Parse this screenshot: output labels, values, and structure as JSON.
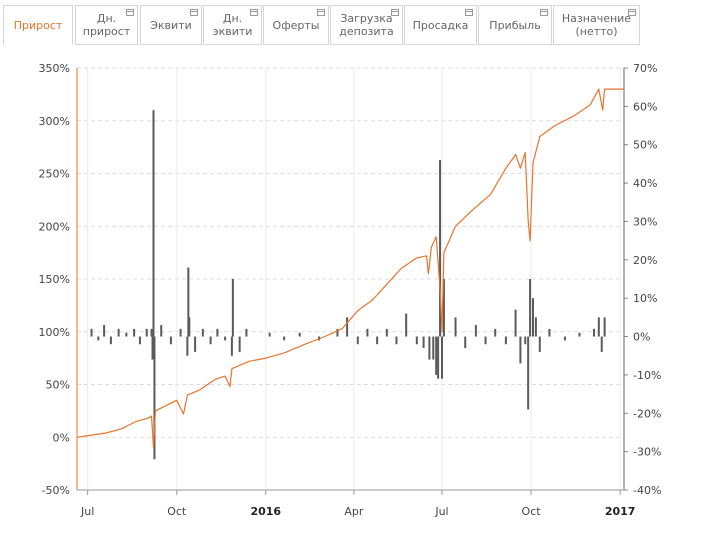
{
  "tabs": [
    {
      "label": "Прирост",
      "active": true
    },
    {
      "label": "Дн.\nприрост",
      "active": false
    },
    {
      "label": "Эквити",
      "active": false
    },
    {
      "label": "Дн.\nэквити",
      "active": false
    },
    {
      "label": "Оферты",
      "active": false
    },
    {
      "label": "Загрузка\nдепозита",
      "active": false
    },
    {
      "label": "Просадка",
      "active": false
    },
    {
      "label": "Прибыль",
      "active": false
    },
    {
      "label": "Назначение\n(нетто)",
      "active": false
    }
  ],
  "colors": {
    "accent": "#e8742c",
    "growth_line": "#e8742c",
    "daily_bars": "#5a5a5a",
    "grid": "#dcdcdc"
  },
  "chart_data": {
    "type": "line",
    "title": "",
    "x_ticks": [
      {
        "label": "Jul",
        "date": "2015-07-01",
        "bold": false
      },
      {
        "label": "Oct",
        "date": "2015-10-01",
        "bold": false
      },
      {
        "label": "2016",
        "date": "2016-01-01",
        "bold": true
      },
      {
        "label": "Apr",
        "date": "2016-04-01",
        "bold": false
      },
      {
        "label": "Jul",
        "date": "2016-07-01",
        "bold": false
      },
      {
        "label": "Oct",
        "date": "2016-10-01",
        "bold": false
      },
      {
        "label": "2017",
        "date": "2017-01-01",
        "bold": true
      }
    ],
    "xlim": [
      "2015-06-20",
      "2017-01-05"
    ],
    "left_axis": {
      "ylim": [
        -50,
        350
      ],
      "ticks": [
        "-50%",
        "0%",
        "50%",
        "100%",
        "150%",
        "200%",
        "250%",
        "300%",
        "350%"
      ]
    },
    "right_axis": {
      "ylim": [
        -40,
        70
      ],
      "ticks": [
        "-40%",
        "-30%",
        "-20%",
        "-10%",
        "0%",
        "10%",
        "20%",
        "30%",
        "40%",
        "50%",
        "60%",
        "70%"
      ]
    },
    "series": [
      {
        "axis": "left",
        "style": "line",
        "points": [
          [
            "2015-06-20",
            0
          ],
          [
            "2015-07-05",
            2
          ],
          [
            "2015-07-20",
            4
          ],
          [
            "2015-08-05",
            8
          ],
          [
            "2015-08-20",
            15
          ],
          [
            "2015-09-01",
            18
          ],
          [
            "2015-09-05",
            20
          ],
          [
            "2015-09-07",
            -10
          ],
          [
            "2015-09-09",
            25
          ],
          [
            "2015-09-20",
            30
          ],
          [
            "2015-10-01",
            35
          ],
          [
            "2015-10-08",
            22
          ],
          [
            "2015-10-12",
            40
          ],
          [
            "2015-10-25",
            45
          ],
          [
            "2015-11-10",
            55
          ],
          [
            "2015-11-20",
            58
          ],
          [
            "2015-11-25",
            48
          ],
          [
            "2015-11-27",
            65
          ],
          [
            "2015-12-15",
            72
          ],
          [
            "2016-01-01",
            75
          ],
          [
            "2016-01-20",
            80
          ],
          [
            "2016-02-10",
            88
          ],
          [
            "2016-03-01",
            95
          ],
          [
            "2016-03-20",
            103
          ],
          [
            "2016-04-05",
            120
          ],
          [
            "2016-04-20",
            130
          ],
          [
            "2016-05-05",
            145
          ],
          [
            "2016-05-20",
            160
          ],
          [
            "2016-06-05",
            170
          ],
          [
            "2016-06-15",
            172
          ],
          [
            "2016-06-17",
            155
          ],
          [
            "2016-06-20",
            180
          ],
          [
            "2016-06-25",
            190
          ],
          [
            "2016-06-29",
            140
          ],
          [
            "2016-07-01",
            100
          ],
          [
            "2016-07-03",
            175
          ],
          [
            "2016-07-15",
            200
          ],
          [
            "2016-08-01",
            215
          ],
          [
            "2016-08-20",
            230
          ],
          [
            "2016-09-05",
            255
          ],
          [
            "2016-09-15",
            268
          ],
          [
            "2016-09-20",
            255
          ],
          [
            "2016-09-25",
            270
          ],
          [
            "2016-09-28",
            205
          ],
          [
            "2016-09-30",
            186
          ],
          [
            "2016-10-03",
            260
          ],
          [
            "2016-10-10",
            285
          ],
          [
            "2016-10-25",
            295
          ],
          [
            "2016-11-15",
            305
          ],
          [
            "2016-12-01",
            315
          ],
          [
            "2016-12-10",
            330
          ],
          [
            "2016-12-14",
            310
          ],
          [
            "2016-12-16",
            330
          ],
          [
            "2016-12-25",
            330
          ],
          [
            "2017-01-05",
            330
          ]
        ]
      },
      {
        "axis": "right",
        "style": "bars",
        "points": [
          [
            "2015-07-05",
            2
          ],
          [
            "2015-07-12",
            -1
          ],
          [
            "2015-07-18",
            3
          ],
          [
            "2015-07-25",
            -2
          ],
          [
            "2015-08-02",
            2
          ],
          [
            "2015-08-10",
            1
          ],
          [
            "2015-08-18",
            2
          ],
          [
            "2015-08-24",
            -2
          ],
          [
            "2015-08-31",
            2
          ],
          [
            "2015-09-05",
            2
          ],
          [
            "2015-09-06",
            -6
          ],
          [
            "2015-09-07",
            59
          ],
          [
            "2015-09-08",
            -32
          ],
          [
            "2015-09-15",
            3
          ],
          [
            "2015-09-25",
            -2
          ],
          [
            "2015-10-05",
            2
          ],
          [
            "2015-10-12",
            -5
          ],
          [
            "2015-10-13",
            18
          ],
          [
            "2015-10-14",
            5
          ],
          [
            "2015-10-20",
            -4
          ],
          [
            "2015-10-28",
            2
          ],
          [
            "2015-11-05",
            -2
          ],
          [
            "2015-11-12",
            2
          ],
          [
            "2015-11-20",
            -1
          ],
          [
            "2015-11-27",
            -5
          ],
          [
            "2015-11-28",
            15
          ],
          [
            "2015-12-05",
            -4
          ],
          [
            "2015-12-12",
            2
          ],
          [
            "2016-01-05",
            1
          ],
          [
            "2016-01-20",
            -1
          ],
          [
            "2016-02-05",
            1
          ],
          [
            "2016-02-25",
            -1
          ],
          [
            "2016-03-15",
            2
          ],
          [
            "2016-03-25",
            5
          ],
          [
            "2016-04-05",
            -2
          ],
          [
            "2016-04-15",
            2
          ],
          [
            "2016-04-25",
            -2
          ],
          [
            "2016-05-05",
            2
          ],
          [
            "2016-05-15",
            -2
          ],
          [
            "2016-05-25",
            6
          ],
          [
            "2016-06-05",
            -2
          ],
          [
            "2016-06-12",
            -3
          ],
          [
            "2016-06-18",
            -6
          ],
          [
            "2016-06-22",
            -6
          ],
          [
            "2016-06-25",
            -10
          ],
          [
            "2016-06-27",
            -11
          ],
          [
            "2016-06-29",
            46
          ],
          [
            "2016-07-01",
            -11
          ],
          [
            "2016-07-03",
            15
          ],
          [
            "2016-07-15",
            5
          ],
          [
            "2016-07-25",
            -3
          ],
          [
            "2016-08-05",
            3
          ],
          [
            "2016-08-15",
            -2
          ],
          [
            "2016-08-25",
            2
          ],
          [
            "2016-09-05",
            -2
          ],
          [
            "2016-09-15",
            7
          ],
          [
            "2016-09-20",
            -7
          ],
          [
            "2016-09-25",
            -2
          ],
          [
            "2016-09-28",
            -19
          ],
          [
            "2016-09-30",
            15
          ],
          [
            "2016-10-03",
            10
          ],
          [
            "2016-10-06",
            5
          ],
          [
            "2016-10-10",
            -4
          ],
          [
            "2016-10-20",
            2
          ],
          [
            "2016-11-05",
            -1
          ],
          [
            "2016-11-20",
            1
          ],
          [
            "2016-12-05",
            2
          ],
          [
            "2016-12-10",
            5
          ],
          [
            "2016-12-13",
            -4
          ],
          [
            "2016-12-16",
            5
          ]
        ]
      }
    ]
  }
}
